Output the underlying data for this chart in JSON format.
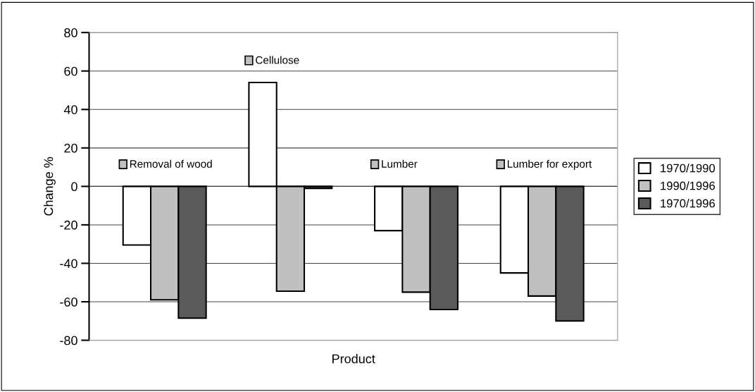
{
  "chart_data": {
    "type": "bar",
    "xlabel": "Product",
    "ylabel": "Change %",
    "categories": [
      "Removal of wood",
      "Cellulose",
      "Lumber",
      "Lumber for export"
    ],
    "series": [
      {
        "name": "1970/1990",
        "color": "#ffffff",
        "values": [
          -30.5,
          54,
          -23,
          -45
        ]
      },
      {
        "name": "1990/1996",
        "color": "#c0c0c0",
        "values": [
          -59,
          -54.5,
          -55,
          -57
        ]
      },
      {
        "name": "1970/1996",
        "color": "#5a5a5a",
        "values": [
          -68.5,
          -1,
          -64,
          -70
        ]
      }
    ],
    "ylim": [
      -80,
      80
    ],
    "yticks": [
      -80,
      -60,
      -40,
      -20,
      0,
      20,
      40,
      60,
      80
    ],
    "grid": "y",
    "legend": "right"
  }
}
